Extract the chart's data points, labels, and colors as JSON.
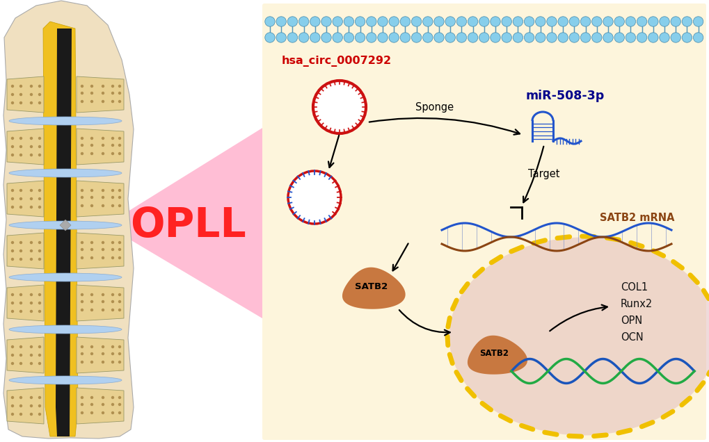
{
  "bg_color": "#ffffff",
  "cell_bg": "#fdf5dc",
  "nucleus_color": "#e8c0c0",
  "opll_color": "#ff2222",
  "pink_region": "#ffb0c8",
  "hsa_circ_color": "#cc0000",
  "mir_color": "#00008b",
  "satb2_mrna_color": "#8b4513",
  "labels": {
    "hsa_circ": "hsa_circ_0007292",
    "mir": "miR-508-3p",
    "sponge": "Sponge",
    "target": "Target",
    "satb2_mrna": "SATB2 mRNA",
    "satb2_cytoplasm": "SATB2",
    "satb2_nucleus": "SATB2",
    "opll": "OPLL",
    "col1": "COL1",
    "runx2": "Runx2",
    "opn": "OPN",
    "ocn": "OCN"
  }
}
